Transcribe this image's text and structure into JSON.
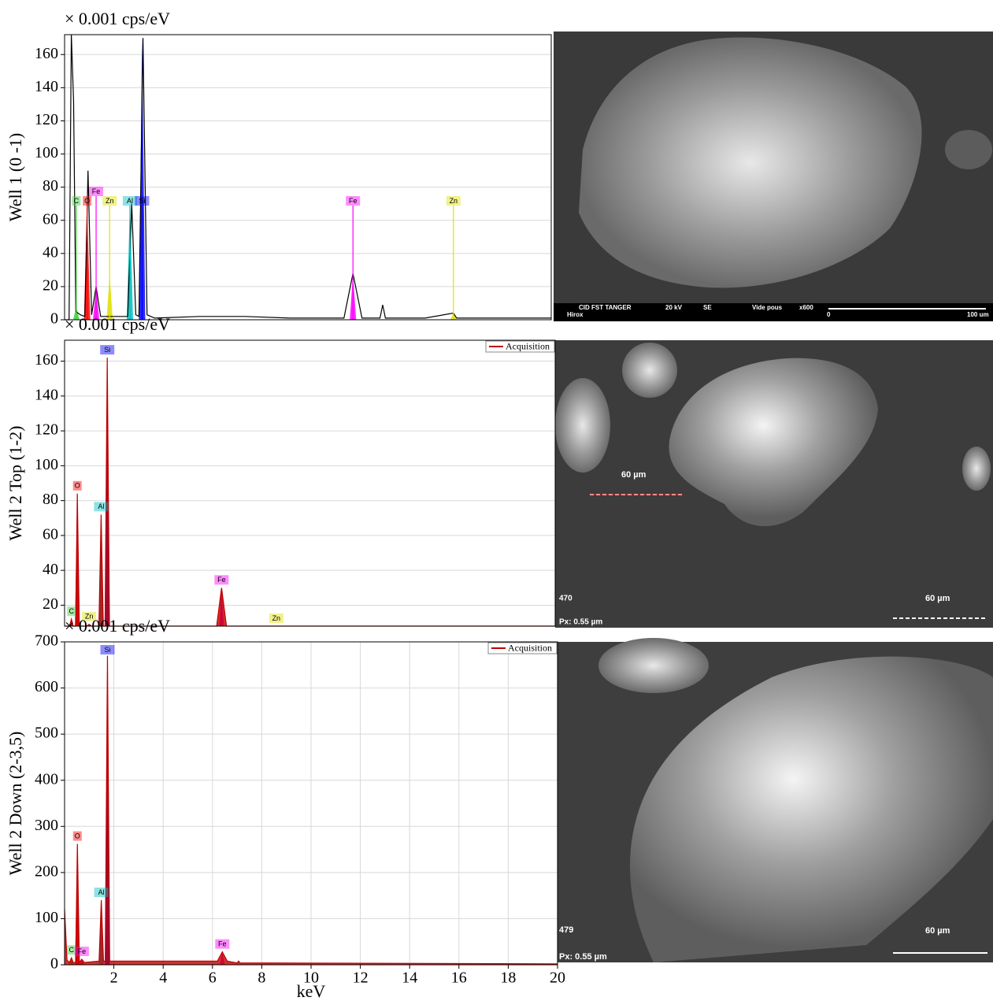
{
  "chart_data": [
    {
      "type": "line",
      "unit_label": "× 0.001 cps/eV",
      "y_label": "Well 1 (0 -1)",
      "xlim": [
        0,
        10.8
      ],
      "ylim": [
        0,
        172
      ],
      "yticks": [
        0,
        20,
        40,
        60,
        80,
        100,
        120,
        140,
        160
      ],
      "grid": true,
      "series": [
        {
          "color": "#000000",
          "x": [
            0,
            0.1,
            0.15,
            0.2,
            0.25,
            0.35,
            0.45,
            0.52,
            0.6,
            0.7,
            0.8,
            1.4,
            1.49,
            1.58,
            1.65,
            1.74,
            1.83,
            2,
            3,
            4,
            5,
            6.2,
            6.4,
            6.6,
            7.0,
            7.06,
            7.12,
            8,
            8.63,
            8.7,
            9,
            10.8
          ],
          "values": [
            0,
            0,
            172,
            132,
            5,
            3,
            2,
            90,
            3,
            20,
            2,
            2,
            70,
            3,
            2,
            170,
            3,
            1,
            2,
            2,
            1,
            1,
            28,
            1,
            1,
            9,
            1,
            1,
            4,
            1,
            1,
            1
          ]
        }
      ],
      "peaks": [
        {
          "label": "C",
          "x": 0.26,
          "height": 8,
          "color": "#40d040"
        },
        {
          "label": "O",
          "x": 0.5,
          "height": 70,
          "color": "#ff0000"
        },
        {
          "label": "Fe",
          "x": 0.7,
          "height": 20,
          "color": "#ff00ff"
        },
        {
          "label": "Zn",
          "x": 1.0,
          "height": 27,
          "color": "#e0e000"
        },
        {
          "label": "Al",
          "x": 1.45,
          "height": 70,
          "color": "#00c0c0"
        },
        {
          "label": "Si",
          "x": 1.72,
          "height": 170,
          "color": "#0000ff"
        },
        {
          "label": "Fe",
          "x": 6.4,
          "height": 28,
          "color": "#ff00ff"
        },
        {
          "label": "Zn",
          "x": 8.63,
          "height": 4,
          "color": "#e0e000"
        }
      ]
    },
    {
      "type": "line",
      "unit_label": "× 0.001 cps/eV",
      "y_label": "Well 2 Top (1-2)",
      "xlim": [
        0,
        20
      ],
      "ylim": [
        8,
        172
      ],
      "yticks": [
        20,
        40,
        60,
        80,
        100,
        120,
        140,
        160
      ],
      "grid": true,
      "filled": true,
      "series": [
        {
          "name": "Acquisition",
          "color": "#c00000",
          "x": [
            0,
            0.2,
            0.28,
            0.35,
            0.45,
            0.52,
            0.6,
            0.9,
            1.0,
            1.1,
            1.4,
            1.49,
            1.58,
            1.65,
            1.74,
            1.83,
            2,
            6.2,
            6.4,
            6.6,
            20
          ],
          "values": [
            8,
            8,
            12,
            8,
            8,
            84,
            8,
            8,
            9,
            8,
            8,
            72,
            8,
            8,
            162,
            8,
            8,
            8,
            30,
            8,
            8
          ]
        }
      ],
      "peaks": [
        {
          "label": "C",
          "x": 0.28,
          "height": 12,
          "color": "#40d040"
        },
        {
          "label": "O",
          "x": 0.52,
          "height": 84,
          "color": "#ff0000"
        },
        {
          "label": "Zn",
          "x": 1.0,
          "height": 9,
          "color": "#e0e000"
        },
        {
          "label": "Al",
          "x": 1.49,
          "height": 72,
          "color": "#00c0c0"
        },
        {
          "label": "Si",
          "x": 1.74,
          "height": 162,
          "color": "#0000ff"
        },
        {
          "label": "Fe",
          "x": 6.4,
          "height": 30,
          "color": "#ff00ff"
        },
        {
          "label": "Zn",
          "x": 8.63,
          "height": 8,
          "color": "#e0e000"
        }
      ]
    },
    {
      "type": "line",
      "unit_label": "× 0.001 cps/eV",
      "y_label": "Well 2 Down (2-3,5)",
      "x_label": "keV",
      "xlim": [
        0,
        20
      ],
      "xticks": [
        2,
        4,
        6,
        8,
        10,
        12,
        14,
        16,
        18,
        20
      ],
      "ylim": [
        0,
        700
      ],
      "yticks": [
        0,
        100,
        200,
        300,
        400,
        500,
        600,
        700
      ],
      "grid": true,
      "filled": true,
      "series": [
        {
          "name": "Acquisition",
          "color": "#c00000",
          "x": [
            0,
            0.1,
            0.2,
            0.28,
            0.35,
            0.45,
            0.52,
            0.6,
            0.7,
            0.8,
            1.4,
            1.49,
            1.58,
            1.65,
            1.74,
            1.83,
            2,
            6.2,
            6.4,
            6.6,
            7.0,
            7.06,
            7.12,
            20
          ],
          "values": [
            120,
            10,
            5,
            15,
            5,
            5,
            262,
            5,
            12,
            5,
            8,
            140,
            8,
            8,
            670,
            8,
            8,
            8,
            28,
            8,
            4,
            8,
            4,
            2
          ]
        }
      ],
      "peaks": [
        {
          "label": "C",
          "x": 0.28,
          "height": 15,
          "color": "#40d040"
        },
        {
          "label": "Fe",
          "x": 0.7,
          "height": 12,
          "color": "#ff00ff"
        },
        {
          "label": "O",
          "x": 0.52,
          "height": 262,
          "color": "#ff0000"
        },
        {
          "label": "Al",
          "x": 1.49,
          "height": 140,
          "color": "#00c0c0"
        },
        {
          "label": "Si",
          "x": 1.74,
          "height": 670,
          "color": "#0000ff"
        },
        {
          "label": "Fe",
          "x": 6.4,
          "height": 28,
          "color": "#ff00ff"
        }
      ]
    }
  ],
  "images": [
    {
      "texts": [
        "CID FST TANGER",
        "20 kV",
        "SE",
        "Vide pous",
        "x600",
        "Hirox",
        "0",
        "100 um"
      ]
    },
    {
      "texts": [
        "60 µm",
        "470",
        "Px: 0.55 µm",
        "60 µm"
      ]
    },
    {
      "texts": [
        "479",
        "Px: 0.55 µm",
        "60 µm"
      ]
    }
  ]
}
